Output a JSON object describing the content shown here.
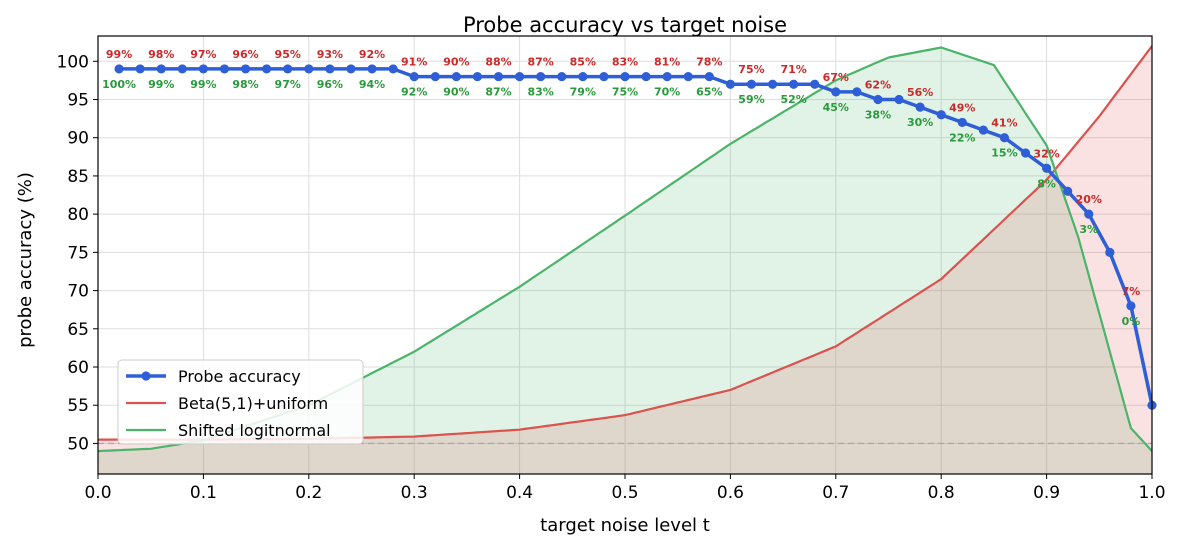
{
  "chart_data": {
    "type": "line",
    "title": "Probe accuracy vs target noise",
    "xlabel": "target noise level t",
    "ylabel": "probe accuracy (%)",
    "xlim": [
      0.0,
      1.0
    ],
    "ylim": [
      46,
      102
    ],
    "x_ticks": [
      "0.0",
      "0.1",
      "0.2",
      "0.3",
      "0.4",
      "0.5",
      "0.6",
      "0.7",
      "0.8",
      "0.9",
      "1.0"
    ],
    "y_ticks": [
      "50",
      "55",
      "60",
      "65",
      "70",
      "75",
      "80",
      "85",
      "90",
      "95",
      "100"
    ],
    "grid": true,
    "legend_position": "bottom-left",
    "reference_line": {
      "y": 50,
      "style": "dashed",
      "color": "#aaaaaa"
    },
    "colors": {
      "probe": "#2f5fd6",
      "beta": "#d9534f",
      "logitnormal": "#4cb36a",
      "annotation_red": "#cc2a2a",
      "annotation_green": "#2a9a3c"
    },
    "series": [
      {
        "name": "Probe accuracy",
        "x": [
          0.02,
          0.04,
          0.06,
          0.08,
          0.1,
          0.12,
          0.14,
          0.16,
          0.18,
          0.2,
          0.22,
          0.24,
          0.26,
          0.28,
          0.3,
          0.32,
          0.34,
          0.36,
          0.38,
          0.4,
          0.42,
          0.44,
          0.46,
          0.48,
          0.5,
          0.52,
          0.54,
          0.56,
          0.58,
          0.6,
          0.62,
          0.64,
          0.66,
          0.68,
          0.7,
          0.72,
          0.74,
          0.76,
          0.78,
          0.8,
          0.82,
          0.84,
          0.86,
          0.88,
          0.9,
          0.92,
          0.94,
          0.96,
          0.98,
          1.0
        ],
        "y": [
          99,
          99,
          99,
          99,
          99,
          99,
          99,
          99,
          99,
          99,
          99,
          99,
          99,
          99,
          98,
          98,
          98,
          98,
          98,
          98,
          98,
          98,
          98,
          98,
          98,
          98,
          98,
          98,
          98,
          97,
          97,
          97,
          97,
          97,
          96,
          96,
          95,
          95,
          94,
          93,
          92,
          91,
          90,
          88,
          86,
          83,
          80,
          75,
          68,
          55
        ]
      },
      {
        "name": "Beta(5,1)+uniform",
        "description_values": "density scaled to axis: ~50.5 at t=0 rising to ~102 at t=1",
        "x": [
          0.0,
          0.1,
          0.2,
          0.3,
          0.4,
          0.5,
          0.6,
          0.7,
          0.8,
          0.9,
          0.95,
          1.0
        ],
        "y": [
          50.5,
          50.5,
          50.6,
          50.9,
          51.8,
          53.7,
          57.0,
          62.7,
          71.5,
          84.5,
          92.8,
          102.0
        ]
      },
      {
        "name": "Shifted logitnormal",
        "x": [
          0.0,
          0.05,
          0.1,
          0.2,
          0.3,
          0.4,
          0.5,
          0.6,
          0.7,
          0.75,
          0.8,
          0.85,
          0.9,
          0.93,
          0.96,
          0.98,
          1.0
        ],
        "y": [
          49.0,
          49.3,
          50.4,
          55.0,
          62.0,
          70.5,
          79.8,
          89.2,
          97.5,
          100.5,
          101.8,
          99.5,
          89.0,
          77.0,
          62.0,
          52.0,
          49.0
        ]
      }
    ],
    "annotations": [
      {
        "x": 0.02,
        "top": "99%",
        "bottom": "100%"
      },
      {
        "x": 0.06,
        "top": "98%",
        "bottom": "99%"
      },
      {
        "x": 0.1,
        "top": "97%",
        "bottom": "99%"
      },
      {
        "x": 0.14,
        "top": "96%",
        "bottom": "98%"
      },
      {
        "x": 0.18,
        "top": "95%",
        "bottom": "97%"
      },
      {
        "x": 0.22,
        "top": "93%",
        "bottom": "96%"
      },
      {
        "x": 0.26,
        "top": "92%",
        "bottom": "94%"
      },
      {
        "x": 0.3,
        "top": "91%",
        "bottom": "92%"
      },
      {
        "x": 0.34,
        "top": "90%",
        "bottom": "90%"
      },
      {
        "x": 0.38,
        "top": "88%",
        "bottom": "87%"
      },
      {
        "x": 0.42,
        "top": "87%",
        "bottom": "83%"
      },
      {
        "x": 0.46,
        "top": "85%",
        "bottom": "79%"
      },
      {
        "x": 0.5,
        "top": "83%",
        "bottom": "75%"
      },
      {
        "x": 0.54,
        "top": "81%",
        "bottom": "70%"
      },
      {
        "x": 0.58,
        "top": "78%",
        "bottom": "65%"
      },
      {
        "x": 0.62,
        "top": "75%",
        "bottom": "59%"
      },
      {
        "x": 0.66,
        "top": "71%",
        "bottom": "52%"
      },
      {
        "x": 0.7,
        "top": "67%",
        "bottom": "45%"
      },
      {
        "x": 0.74,
        "top": "62%",
        "bottom": "38%"
      },
      {
        "x": 0.78,
        "top": "56%",
        "bottom": "30%"
      },
      {
        "x": 0.82,
        "top": "49%",
        "bottom": "22%"
      },
      {
        "x": 0.86,
        "top": "41%",
        "bottom": "15%"
      },
      {
        "x": 0.9,
        "top": "32%",
        "bottom": "8%"
      },
      {
        "x": 0.94,
        "top": "20%",
        "bottom": "3%"
      },
      {
        "x": 0.98,
        "top": "7%",
        "bottom": "0%"
      }
    ]
  }
}
